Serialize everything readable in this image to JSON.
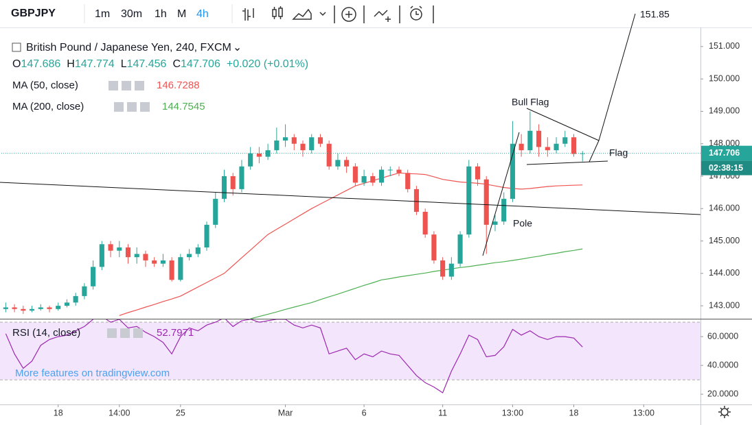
{
  "toolbar": {
    "symbol": "GBPJPY",
    "intervals": [
      "1m",
      "30m",
      "1h",
      "M",
      "4h"
    ]
  },
  "chart_data": {
    "type": "candlestick",
    "title": "British Pound / Japanese Yen, 240, FXCM",
    "ohlc_labels": [
      "O",
      "H",
      "L",
      "C"
    ],
    "change": "+0.020 (+0.01%)",
    "categories": [
      null,
      null,
      null,
      null,
      null,
      null,
      "18",
      null,
      null,
      null,
      null,
      null,
      null,
      "14:00",
      null,
      null,
      null,
      null,
      null,
      null,
      "25",
      null,
      null,
      null,
      null,
      null,
      null,
      null,
      null,
      null,
      null,
      null,
      "Mar",
      null,
      null,
      null,
      null,
      null,
      null,
      null,
      null,
      "6",
      null,
      null,
      null,
      null,
      null,
      null,
      null,
      null,
      "11",
      null,
      null,
      null,
      null,
      null,
      null,
      null,
      "13:00",
      null,
      null,
      null,
      null,
      null,
      null,
      "18",
      null,
      null,
      null,
      null,
      null,
      null,
      null,
      "13:00",
      null,
      null,
      null,
      null,
      null,
      null
    ],
    "open": [
      142.9,
      142.95,
      142.9,
      142.85,
      142.9,
      142.95,
      142.9,
      143.0,
      143.1,
      143.3,
      143.6,
      144.2,
      144.9,
      144.7,
      144.8,
      144.5,
      144.6,
      144.4,
      144.3,
      144.4,
      143.8,
      144.5,
      144.6,
      144.8,
      145.5,
      146.3,
      147.0,
      146.6,
      147.3,
      147.7,
      147.6,
      147.8,
      148.1,
      148.2,
      148.0,
      147.8,
      148.2,
      148.0,
      147.3,
      147.5,
      147.3,
      146.8,
      147.0,
      146.8,
      147.2,
      147.2,
      147.1,
      146.6,
      145.9,
      145.2,
      144.4,
      143.9,
      144.3,
      145.2,
      147.3,
      146.9,
      145.5,
      145.6,
      146.3,
      148.0,
      147.8,
      148.4,
      147.9,
      147.8,
      148.0,
      148.2,
      147.686,
      null,
      null,
      null,
      null,
      null,
      null,
      null,
      null,
      null,
      null,
      null,
      null,
      null
    ],
    "high": [
      143.1,
      143.05,
      143.0,
      143.0,
      143.05,
      143.0,
      143.1,
      143.2,
      143.4,
      143.7,
      144.4,
      145.0,
      145.0,
      145.0,
      144.9,
      144.8,
      144.7,
      144.5,
      144.6,
      144.5,
      144.6,
      144.75,
      144.9,
      145.6,
      146.5,
      147.2,
      147.1,
      147.5,
      147.9,
      147.9,
      148.0,
      148.5,
      148.6,
      148.3,
      148.1,
      148.3,
      148.3,
      148.1,
      147.7,
      147.6,
      147.4,
      147.2,
      147.1,
      147.3,
      147.3,
      147.3,
      147.2,
      146.7,
      146.0,
      145.3,
      144.5,
      144.5,
      145.3,
      147.5,
      147.4,
      147.0,
      145.8,
      146.5,
      148.7,
      148.3,
      149.0,
      148.6,
      148.2,
      148.2,
      148.4,
      148.3,
      147.774,
      null,
      null,
      null,
      null,
      null,
      null,
      null,
      null,
      null,
      null,
      null,
      null,
      null
    ],
    "low": [
      142.8,
      142.8,
      142.75,
      142.8,
      142.85,
      142.8,
      142.85,
      142.95,
      143.0,
      143.2,
      143.5,
      144.1,
      144.5,
      144.5,
      144.3,
      144.3,
      144.2,
      144.2,
      144.2,
      143.75,
      143.75,
      144.4,
      144.5,
      144.7,
      145.4,
      146.2,
      146.4,
      146.5,
      147.2,
      147.4,
      147.5,
      147.7,
      147.9,
      147.8,
      147.6,
      147.7,
      147.9,
      147.2,
      147.2,
      147.1,
      146.7,
      146.7,
      146.7,
      146.7,
      147.0,
      147.0,
      146.5,
      145.8,
      145.1,
      144.3,
      143.8,
      143.8,
      144.2,
      145.1,
      146.7,
      144.6,
      145.3,
      145.5,
      146.2,
      147.6,
      147.7,
      147.6,
      147.6,
      147.7,
      147.9,
      147.6,
      147.456,
      null,
      null,
      null,
      null,
      null,
      null,
      null,
      null,
      null,
      null,
      null,
      null,
      null
    ],
    "close": [
      142.95,
      142.9,
      142.85,
      142.9,
      142.95,
      142.9,
      143.0,
      143.1,
      143.3,
      143.6,
      144.2,
      144.9,
      144.7,
      144.8,
      144.5,
      144.6,
      144.4,
      144.3,
      144.4,
      143.8,
      144.5,
      144.6,
      144.8,
      145.5,
      146.3,
      147.0,
      146.6,
      147.3,
      147.7,
      147.6,
      147.8,
      148.1,
      148.2,
      148.0,
      147.8,
      148.2,
      148.0,
      147.3,
      147.5,
      147.3,
      146.8,
      147.0,
      146.8,
      147.2,
      147.2,
      147.1,
      146.6,
      145.9,
      145.2,
      144.4,
      143.9,
      144.3,
      145.2,
      147.3,
      146.9,
      145.5,
      145.6,
      146.3,
      148.0,
      147.8,
      148.4,
      147.9,
      147.8,
      148.0,
      148.2,
      147.686,
      147.706,
      null,
      null,
      null,
      null,
      null,
      null,
      null,
      null,
      null,
      null,
      null,
      null,
      null
    ],
    "up_color": "#26a69a",
    "down_color": "#ef5350",
    "ylim": [
      142.6,
      151.59
    ],
    "yticks": [
      {
        "value": 143,
        "label": "143.000"
      },
      {
        "value": 144,
        "label": "144.000"
      },
      {
        "value": 145,
        "label": "145.000"
      },
      {
        "value": 146,
        "label": "146.000"
      },
      {
        "value": 147,
        "label": "147.000"
      },
      {
        "value": 148,
        "label": "148.000"
      },
      {
        "value": 149,
        "label": "149.000"
      },
      {
        "value": 150,
        "label": "150.000"
      },
      {
        "value": 151,
        "label": "151.000"
      }
    ],
    "grid": false,
    "countdown": "02:38:15",
    "indicators": [
      {
        "name": "MA (50, close)",
        "color": "#ef5350",
        "values": [
          null,
          null,
          null,
          null,
          null,
          null,
          null,
          null,
          null,
          null,
          null,
          null,
          null,
          142.7,
          142.79,
          142.87,
          142.96,
          143.04,
          143.13,
          143.21,
          143.3,
          143.44,
          143.58,
          143.72,
          143.86,
          144.0,
          144.24,
          144.48,
          144.72,
          144.96,
          145.2,
          145.36,
          145.52,
          145.68,
          145.84,
          146.0,
          146.14,
          146.28,
          146.42,
          146.56,
          146.7,
          146.78,
          146.86,
          146.94,
          147.02,
          147.1,
          147.08,
          147.07,
          147.05,
          146.98,
          146.9,
          146.86,
          146.82,
          146.8,
          146.78,
          146.75,
          146.7,
          146.65,
          146.62,
          146.6,
          146.62,
          146.65,
          146.68,
          146.7,
          146.71,
          146.72,
          146.7288,
          null,
          null,
          null,
          null,
          null,
          null,
          null,
          null,
          null,
          null,
          null,
          null,
          null
        ]
      },
      {
        "name": "MA (200, close)",
        "color": "#4caf50",
        "values": [
          null,
          null,
          null,
          null,
          null,
          null,
          null,
          null,
          null,
          null,
          null,
          null,
          null,
          null,
          null,
          null,
          null,
          null,
          null,
          null,
          null,
          null,
          null,
          null,
          null,
          null,
          null,
          null,
          142.6,
          142.67,
          142.74,
          142.81,
          142.89,
          142.96,
          143.03,
          143.1,
          143.19,
          143.28,
          143.36,
          143.45,
          143.54,
          143.63,
          143.71,
          143.8,
          143.84,
          143.89,
          143.93,
          143.97,
          144.01,
          144.06,
          144.1,
          144.14,
          144.18,
          144.21,
          144.25,
          144.29,
          144.33,
          144.36,
          144.4,
          144.44,
          144.49,
          144.53,
          144.58,
          144.62,
          144.67,
          144.71,
          144.7545,
          null,
          null,
          null,
          null,
          null,
          null,
          null,
          null,
          null,
          null,
          null,
          null,
          null
        ]
      }
    ],
    "rsi": {
      "name": "RSI (14, close)",
      "color": "#9c27b0",
      "band": [
        30,
        70
      ],
      "band_color": "#f3e5fc",
      "values": [
        62,
        48,
        38,
        43,
        54,
        58,
        60,
        61,
        64,
        67,
        72,
        74,
        70,
        72,
        66,
        67,
        63,
        60,
        56,
        48,
        60,
        66,
        64,
        68,
        70,
        73,
        67,
        71,
        72,
        70,
        71,
        72,
        72,
        68,
        66,
        68,
        66,
        48,
        50,
        52,
        44,
        48,
        46,
        50,
        48,
        47,
        40,
        33,
        28,
        25,
        21,
        36,
        48,
        61,
        58,
        46,
        47,
        53,
        65,
        61,
        64,
        60,
        58,
        60,
        60,
        59,
        52.7971,
        null,
        null,
        null,
        null,
        null,
        null,
        null,
        null,
        null,
        null,
        null,
        null,
        null
      ],
      "ylim": [
        12.9,
        72.4
      ],
      "yticks": [
        {
          "value": 20,
          "label": "20.0000"
        },
        {
          "value": 40,
          "label": "40.0000"
        },
        {
          "value": 60,
          "label": "60.0000"
        }
      ]
    },
    "annotations": [
      "Bull Flag",
      "Flag",
      "Pole",
      "151.85"
    ],
    "watermark": "More features on tradingview.com"
  }
}
